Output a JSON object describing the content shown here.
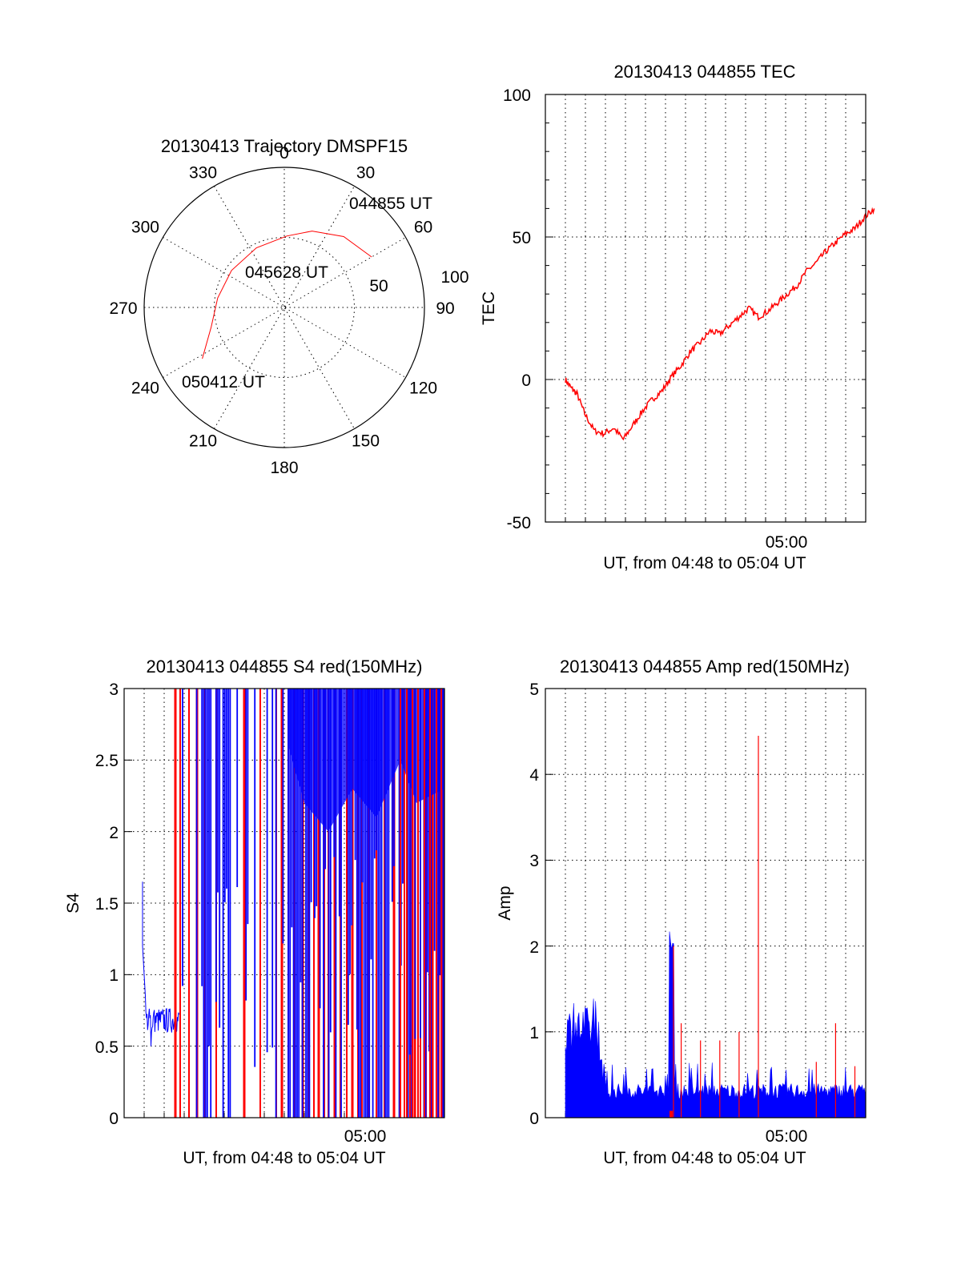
{
  "colors": {
    "red": "#ff0000",
    "blue": "#0000ff",
    "axis": "#000000"
  },
  "chart_data": [
    {
      "id": "trajectory",
      "type": "polar",
      "title": "20130413 Trajectory DMSPF15",
      "angle_labels": [
        "0",
        "30",
        "60",
        "90",
        "120",
        "150",
        "180",
        "210",
        "240",
        "270",
        "300",
        "330"
      ],
      "radius_labels": [
        "100",
        "50"
      ],
      "rlim": [
        0,
        100
      ],
      "series_color": "red",
      "trajectory": [
        {
          "az": 60,
          "el": 28
        },
        {
          "az": 40,
          "el": 34
        },
        {
          "az": 20,
          "el": 42
        },
        {
          "az": 2,
          "el": 49
        },
        {
          "az": -25,
          "el": 53
        },
        {
          "az": -55,
          "el": 54
        },
        {
          "az": -82,
          "el": 52
        },
        {
          "az": -105,
          "el": 46
        },
        {
          "az": -122,
          "el": 31
        }
      ],
      "annotations": [
        "044855 UT",
        "045628 UT",
        "050412 UT"
      ]
    },
    {
      "id": "tec",
      "type": "line",
      "title": "20130413 044855 TEC",
      "ylabel": "TEC",
      "xlabel": "UT, from 04:48 to 05:04 UT",
      "x_tick_label": "05:00",
      "y_ticks": [
        "100",
        "50",
        "0",
        "-50"
      ],
      "ylim": [
        -50,
        100
      ],
      "series_color": "red",
      "x": [
        0,
        0.3,
        0.6,
        1.0,
        1.5,
        2.0,
        2.5,
        3.0,
        3.5,
        4.0,
        4.5,
        5.0,
        5.5,
        6.0,
        6.5,
        7.0,
        7.5,
        8.0,
        8.5,
        9.0,
        9.5,
        10.0,
        10.5,
        11.0,
        11.5,
        12.0,
        12.5,
        13.0,
        13.5,
        14.0,
        14.5,
        15.0,
        15.5,
        16.0
      ],
      "y": [
        0,
        -3,
        -5,
        -12,
        -18,
        -19,
        -17,
        -21,
        -16,
        -11,
        -7,
        -4,
        1,
        5,
        10,
        13,
        17,
        16,
        19,
        22,
        25,
        22,
        24,
        27,
        30,
        33,
        38,
        41,
        45,
        48,
        51,
        53,
        57,
        60
      ]
    },
    {
      "id": "s4",
      "type": "line",
      "title": "20130413 044855 S4 red(150MHz)",
      "ylabel": "S4",
      "xlabel": "UT, from 04:48 to 05:04 UT",
      "x_tick_label": "05:00",
      "y_ticks": [
        "3",
        "2.5",
        "2",
        "1.5",
        "1",
        "0.5",
        "0"
      ],
      "ylim": [
        0,
        3
      ]
    },
    {
      "id": "amp",
      "type": "line",
      "title": "20130413 044855 Amp red(150MHz)",
      "ylabel": "Amp",
      "xlabel": "UT, from 04:48 to 05:04 UT",
      "x_tick_label": "05:00",
      "y_ticks": [
        "5",
        "4",
        "3",
        "2",
        "1",
        "0"
      ],
      "ylim": [
        0,
        5
      ],
      "red_spikes": [
        {
          "x": 5.6,
          "y": 2.0
        },
        {
          "x": 6.0,
          "y": 1.1
        },
        {
          "x": 7.0,
          "y": 0.9
        },
        {
          "x": 8.0,
          "y": 0.9
        },
        {
          "x": 9.0,
          "y": 1.0
        },
        {
          "x": 10.0,
          "y": 4.45
        },
        {
          "x": 13.0,
          "y": 0.65
        },
        {
          "x": 14.0,
          "y": 1.1
        },
        {
          "x": 15.0,
          "y": 0.6
        }
      ]
    }
  ]
}
